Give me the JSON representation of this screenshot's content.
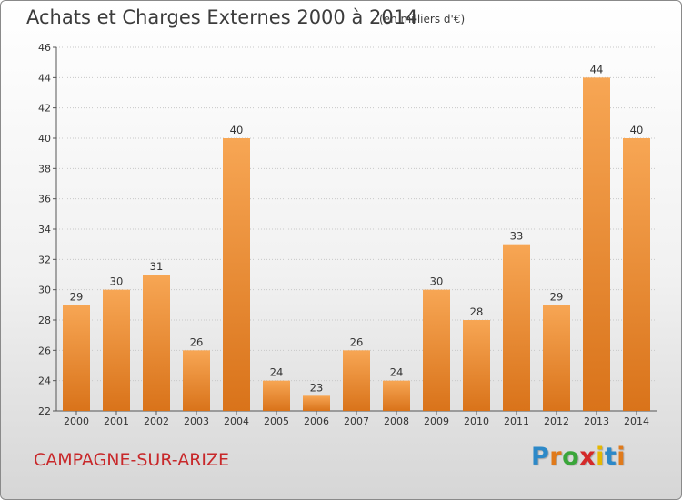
{
  "header": {
    "title": "Achats et Charges Externes 2000 à 2014",
    "subtitle": "(en milliers d'€)"
  },
  "footer": {
    "commune": "CAMPAGNE-SUR-ARIZE",
    "logo": {
      "letters": [
        "P",
        "r",
        "o",
        "x",
        "i",
        "t",
        "i"
      ],
      "colors": [
        "#2d89c8",
        "#e07a1b",
        "#3aa63a",
        "#d42a2a",
        "#e6b800",
        "#2d89c8",
        "#e07a1b"
      ]
    }
  },
  "colors": {
    "bar_light": "#f7a654",
    "bar_dark": "#d9731a",
    "grid": "#c8c8c8",
    "commune": "#c8282a"
  },
  "chart_data": {
    "type": "bar",
    "title": "Achats et Charges Externes 2000 à 2014",
    "subtitle": "(en milliers d'€)",
    "categories": [
      "2000",
      "2001",
      "2002",
      "2003",
      "2004",
      "2005",
      "2006",
      "2007",
      "2008",
      "2009",
      "2010",
      "2011",
      "2012",
      "2013",
      "2014"
    ],
    "values": [
      29,
      30,
      31,
      26,
      40,
      24,
      23,
      26,
      24,
      30,
      28,
      33,
      29,
      44,
      40
    ],
    "ylim": [
      22,
      46
    ],
    "yticks": [
      22,
      24,
      26,
      28,
      30,
      32,
      34,
      36,
      38,
      40,
      42,
      44,
      46
    ],
    "grid": true,
    "legend": "none"
  }
}
